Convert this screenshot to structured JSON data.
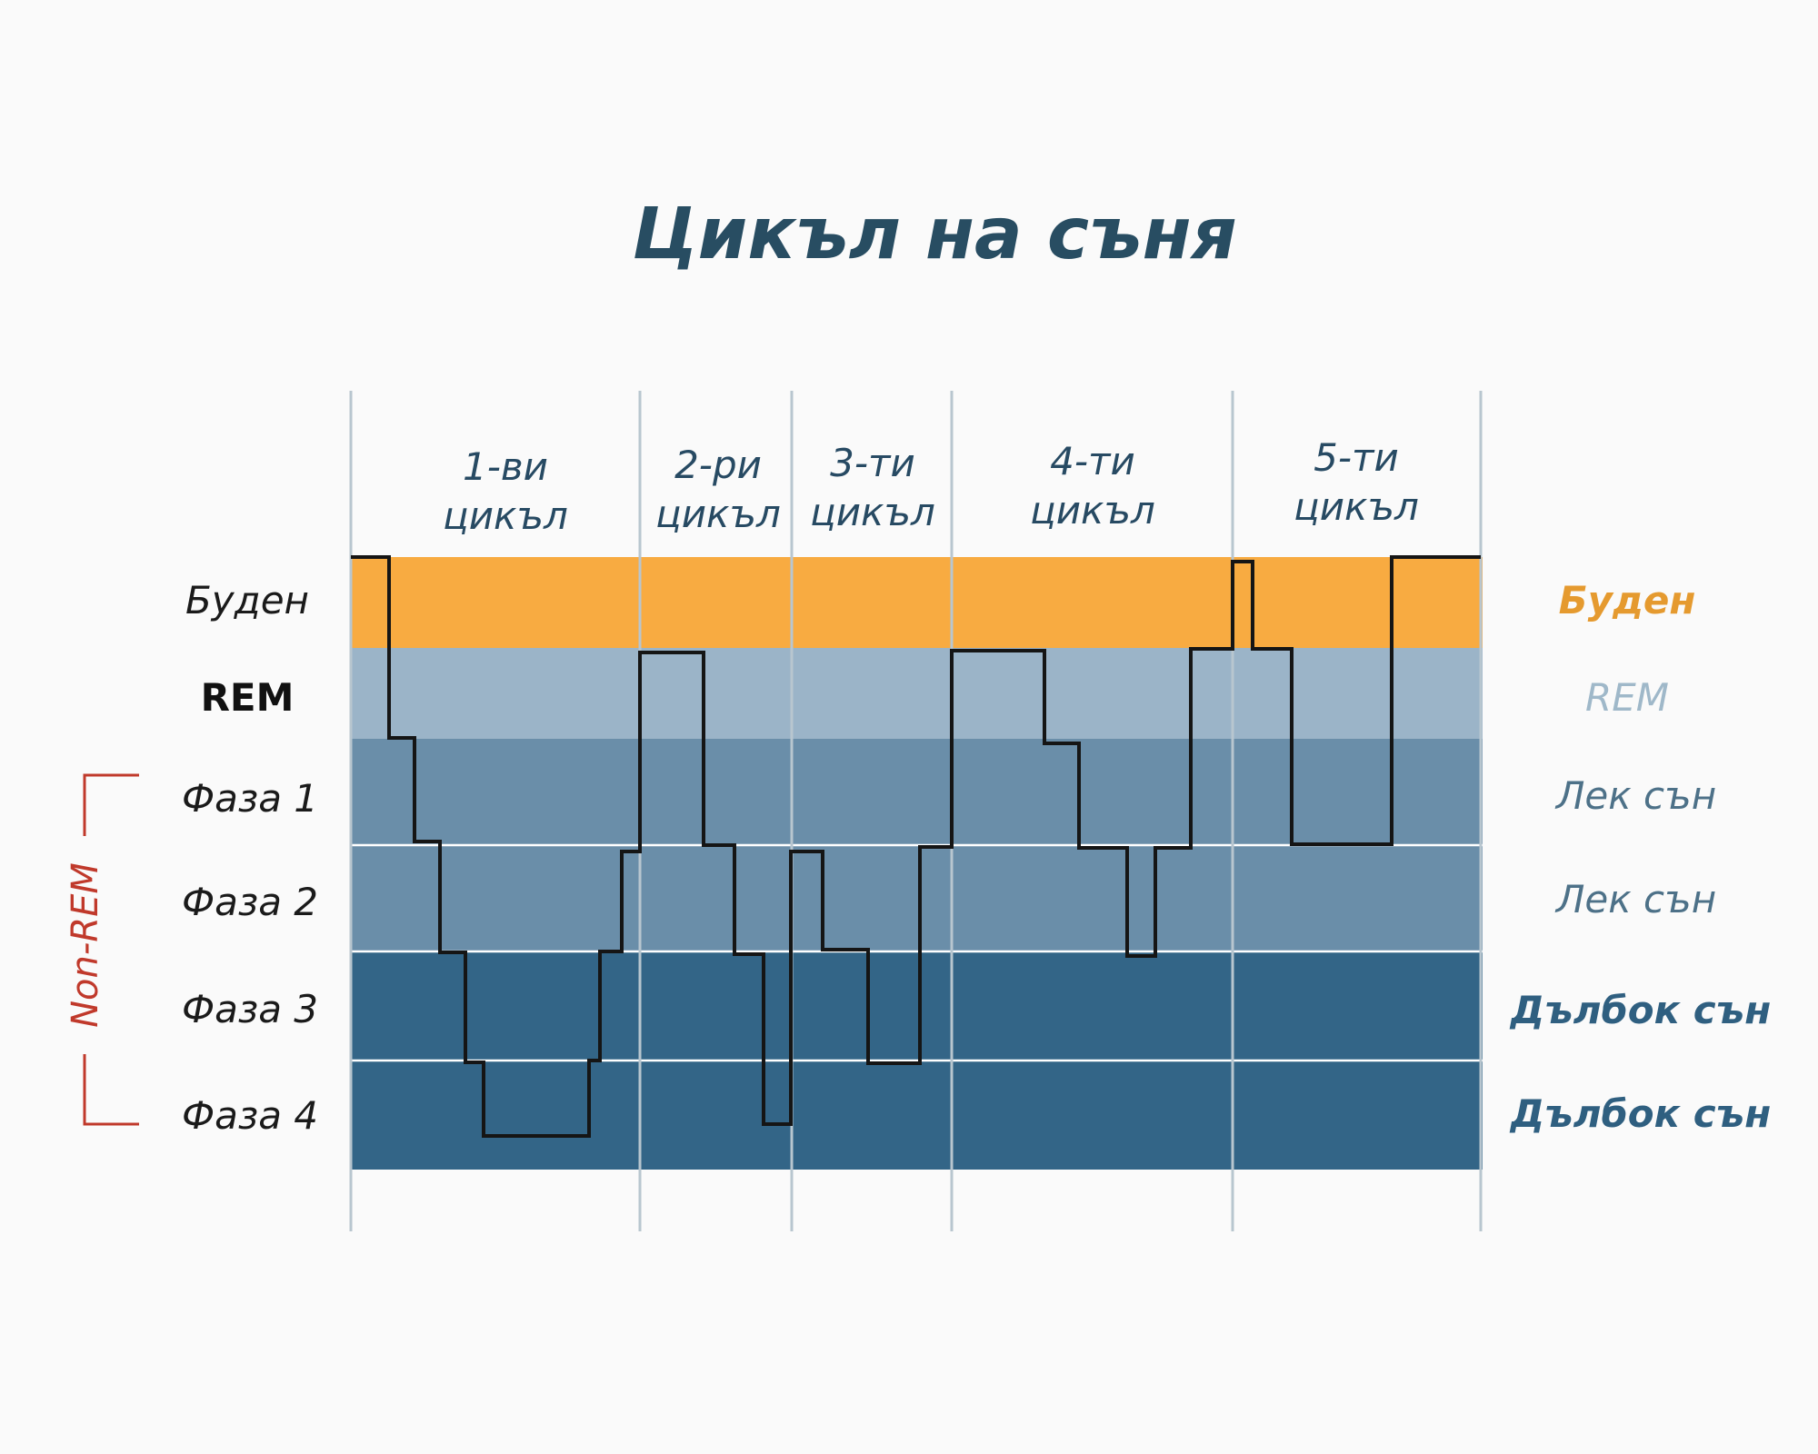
{
  "title": "Цикъл на съня",
  "colors": {
    "awake": "#f8ab41",
    "rem": "#9bb4c8",
    "light": "#6a8ea9",
    "deep": "#336587",
    "title": "#284d62",
    "grid": "#b8c6cf",
    "hypnogram": "#151515",
    "bracket": "#c0392b",
    "right_awake": "#e59a2f",
    "right_rem": "#9fb8c9",
    "right_light": "#4d7188",
    "right_deep": "#2f5f80"
  },
  "cycles": [
    {
      "label_line1": "1-ви",
      "label_line2": "цикъл"
    },
    {
      "label_line1": "2-ри",
      "label_line2": "цикъл"
    },
    {
      "label_line1": "3-ти",
      "label_line2": "цикъл"
    },
    {
      "label_line1": "4-ти",
      "label_line2": "цикъл"
    },
    {
      "label_line1": "5-ти",
      "label_line2": "цикъл"
    }
  ],
  "stages_left": [
    "Буден",
    "REM",
    "Фаза 1",
    "Фаза 2",
    "Фаза 3",
    "Фаза 4"
  ],
  "stages_right": [
    "Буден",
    "REM",
    "Лек сън",
    "Лек сън",
    "Дълбок сън",
    "Дълбок сън"
  ],
  "non_rem_label": "Non-REM"
}
